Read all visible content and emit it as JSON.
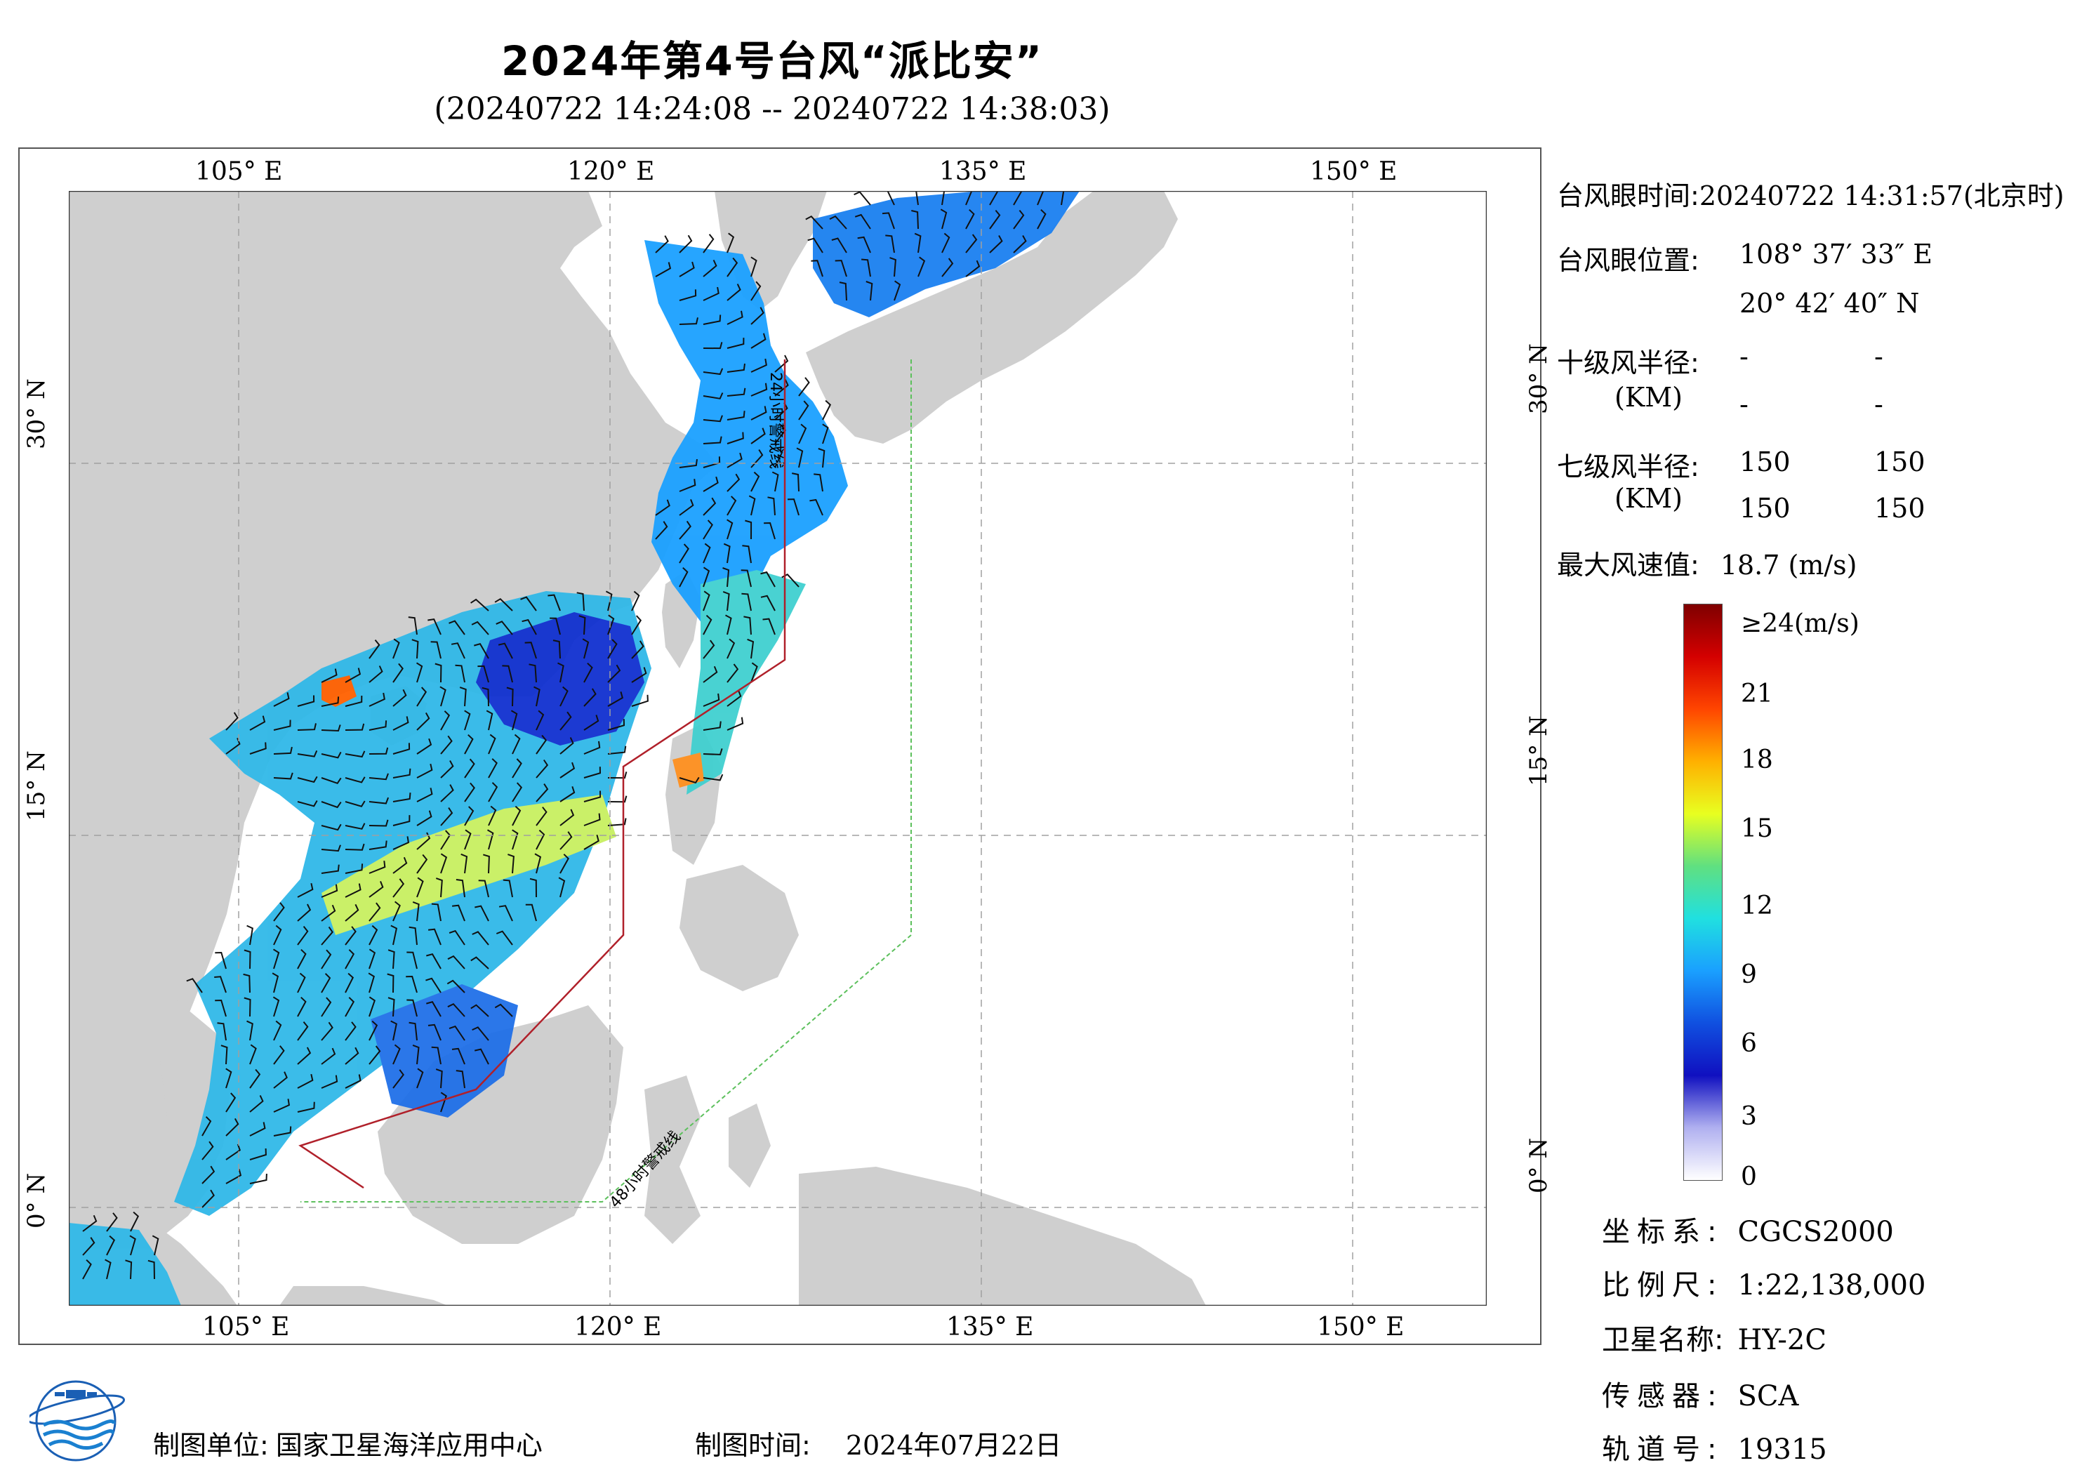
{
  "title": "2024年第4号台风“派比安”",
  "subtitle": "(20240722 14:24:08 -- 20240722 14:38:03)",
  "map": {
    "top_lon_labels": [
      "105° E",
      "120° E",
      "135° E",
      "150° E"
    ],
    "bottom_lon_labels": [
      "105° E",
      "120° E",
      "135° E",
      "150° E"
    ],
    "lat_labels": [
      "30° N",
      "15° N",
      "0° N"
    ],
    "warning_24h": "24小时警戒线",
    "warning_48h": "48小时警戒线",
    "colors": {
      "land": "#cfcfcf",
      "sea": "#ffffff",
      "line_24h": "#b0202a",
      "line_48h": "#5cc05c"
    }
  },
  "info": {
    "eye_time_label": "台风眼时间:",
    "eye_time_value": "20240722 14:31:57(北京时)",
    "eye_pos_label": "台风眼位置:",
    "eye_lon": "108° 37′ 33″ E",
    "eye_lat": "20° 42′ 40″ N",
    "r10_label": "十级风半径:",
    "r10_unit": "(KM)",
    "r10_values": [
      "-",
      "-",
      "-",
      "-"
    ],
    "r7_label": "七级风半径:",
    "r7_unit": "(KM)",
    "r7_values": [
      "150",
      "150",
      "150",
      "150"
    ],
    "max_wind_label": "最大风速值:",
    "max_wind_value": "18.7 (m/s)"
  },
  "colorbar": {
    "top_label": "≥24(m/s)",
    "ticks": [
      "21",
      "18",
      "15",
      "12",
      "9",
      "6",
      "3",
      "0"
    ],
    "stops": [
      "#7f0000",
      "#d40000",
      "#ff4500",
      "#ffb000",
      "#e8ff20",
      "#60e080",
      "#20e0e0",
      "#1aa0ff",
      "#1050e0",
      "#1010c0",
      "#b0b0f0",
      "#ffffff"
    ]
  },
  "satellite": {
    "coord_label": "坐标系:",
    "coord_value": "CGCS2000",
    "scale_label": "比例尺:",
    "scale_value": "1:22,138,000",
    "sat_label": "卫星名称:",
    "sat_value": "HY-2C",
    "sensor_label": "传感器:",
    "sensor_value": "SCA",
    "orbit_label": "轨道号:",
    "orbit_value": "19315"
  },
  "footer": {
    "org_label": "制图单位:",
    "org_value": "国家卫星海洋应用中心",
    "date_label": "制图时间:",
    "date_value": "2024年07月22日"
  }
}
